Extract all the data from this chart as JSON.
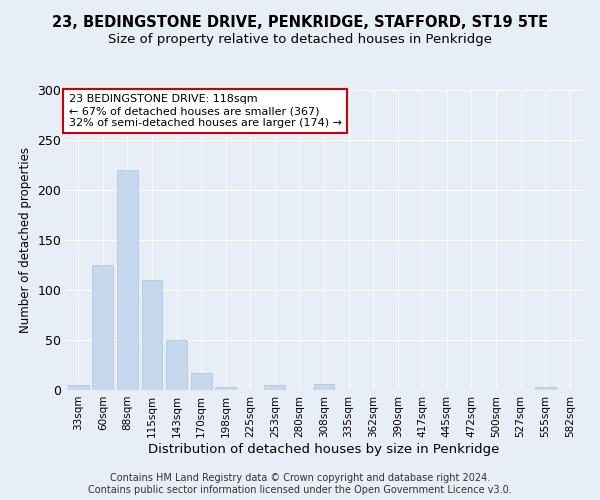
{
  "title": "23, BEDINGSTONE DRIVE, PENKRIDGE, STAFFORD, ST19 5TE",
  "subtitle": "Size of property relative to detached houses in Penkridge",
  "xlabel": "Distribution of detached houses by size in Penkridge",
  "ylabel": "Number of detached properties",
  "footer_line1": "Contains HM Land Registry data © Crown copyright and database right 2024.",
  "footer_line2": "Contains public sector information licensed under the Open Government Licence v3.0.",
  "annotation_line1": "23 BEDINGSTONE DRIVE: 118sqm",
  "annotation_line2": "← 67% of detached houses are smaller (367)",
  "annotation_line3": "32% of semi-detached houses are larger (174) →",
  "bar_labels": [
    "33sqm",
    "60sqm",
    "88sqm",
    "115sqm",
    "143sqm",
    "170sqm",
    "198sqm",
    "225sqm",
    "253sqm",
    "280sqm",
    "308sqm",
    "335sqm",
    "362sqm",
    "390sqm",
    "417sqm",
    "445sqm",
    "472sqm",
    "500sqm",
    "527sqm",
    "555sqm",
    "582sqm"
  ],
  "bar_values": [
    5,
    125,
    220,
    110,
    50,
    17,
    3,
    0,
    5,
    0,
    6,
    0,
    0,
    0,
    0,
    0,
    0,
    0,
    0,
    3,
    0
  ],
  "bar_color": "#c5d8ed",
  "bar_edge_color": "#a8c4de",
  "annotation_box_facecolor": "#ffffff",
  "annotation_box_edgecolor": "#cc0000",
  "background_color": "#e8eef5",
  "grid_color": "#ffffff",
  "ylim": [
    0,
    300
  ],
  "yticks": [
    0,
    50,
    100,
    150,
    200,
    250,
    300
  ],
  "title_fontsize": 10.5,
  "subtitle_fontsize": 9.5,
  "xlabel_fontsize": 9.5,
  "ylabel_fontsize": 8.5,
  "ytick_fontsize": 9,
  "xtick_fontsize": 7.5,
  "annotation_fontsize": 8,
  "footer_fontsize": 7
}
